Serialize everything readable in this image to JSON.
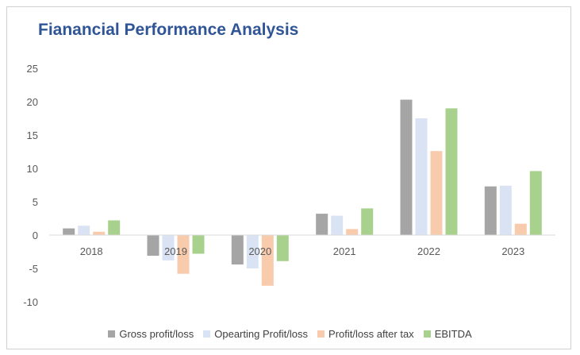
{
  "chart_data": {
    "type": "bar",
    "title": "Fianancial Performance Analysis",
    "categories": [
      "2018",
      "2019",
      "2020",
      "2021",
      "2022",
      "2023"
    ],
    "series": [
      {
        "name": "Gross profit/loss",
        "color": "#a5a5a5",
        "values": [
          1.0,
          -3.1,
          -4.4,
          3.2,
          20.3,
          7.3
        ]
      },
      {
        "name": "Opearting Profit/loss",
        "color": "#dae3f3",
        "values": [
          1.4,
          -3.8,
          -5.0,
          2.9,
          17.5,
          7.4
        ]
      },
      {
        "name": "Profit/loss after tax",
        "color": "#f8cbad",
        "values": [
          0.5,
          -5.8,
          -7.6,
          0.9,
          12.6,
          1.7
        ]
      },
      {
        "name": "EBITDA",
        "color": "#a9d18e",
        "values": [
          2.2,
          -2.8,
          -3.9,
          4.0,
          19.0,
          9.6
        ]
      }
    ],
    "yticks": [
      "25",
      "20",
      "15",
      "10",
      "5",
      "0",
      "-5",
      "-10"
    ],
    "ylim": [
      -10,
      25
    ],
    "xlabel": "",
    "ylabel": "",
    "grid": false,
    "legend_position": "bottom"
  }
}
